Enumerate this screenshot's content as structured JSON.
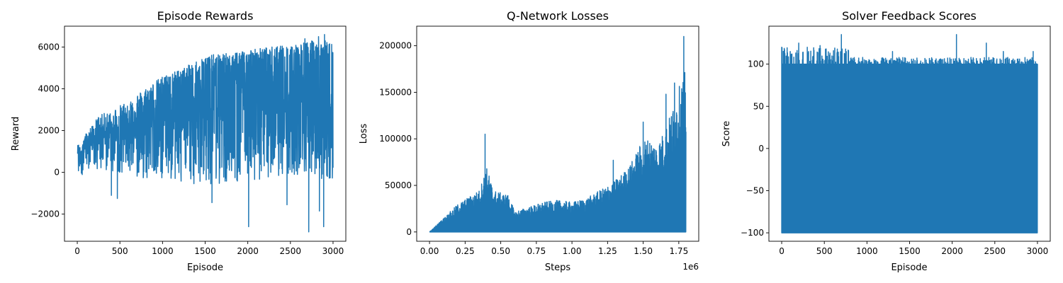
{
  "colors": {
    "series": "#1f77b4",
    "axes": "#000000",
    "background": "#ffffff"
  },
  "chart_data": [
    {
      "type": "line",
      "title": "Episode Rewards",
      "xlabel": "Episode",
      "ylabel": "Reward",
      "xlim": [
        -150,
        3150
      ],
      "ylim": [
        -3300,
        7000
      ],
      "xticks": [
        0,
        500,
        1000,
        1500,
        2000,
        2500,
        3000
      ],
      "xtick_labels": [
        "0",
        "500",
        "1000",
        "1500",
        "2000",
        "2500",
        "3000"
      ],
      "yticks": [
        -2000,
        0,
        2000,
        4000,
        6000
      ],
      "ytick_labels": [
        "−2000",
        "0",
        "2000",
        "4000",
        "6000"
      ],
      "series": [
        {
          "name": "Reward",
          "x_start": 0,
          "x_end": 3000,
          "envelope": {
            "x": [
              0,
              250,
              500,
              750,
              1000,
              1250,
              1500,
              1750,
              2000,
              2250,
              2500,
              2750,
              3000
            ],
            "upper": [
              1300,
              2700,
              3200,
              3900,
              4600,
              5000,
              5600,
              5700,
              5900,
              6000,
              6100,
              6300,
              6300
            ],
            "lower": [
              -200,
              100,
              0,
              -300,
              -400,
              -500,
              -600,
              -500,
              -400,
              -300,
              -300,
              -300,
              -300
            ],
            "band_high": [
              900,
              2000,
              2400,
              3000,
              3900,
              4400,
              4800,
              5000,
              5200,
              5300,
              5400,
              5500,
              5600
            ],
            "band_low": [
              900,
              1200,
              1300,
              1300,
              1400,
              1500,
              1500,
              1500,
              1600,
              1600,
              1600,
              1700,
              1700
            ]
          },
          "spikes": [
            {
              "x": 2010,
              "y": -2600
            },
            {
              "x": 2715,
              "y": -2850
            },
            {
              "x": 2890,
              "y": -2600
            },
            {
              "x": 2840,
              "y": -1850
            },
            {
              "x": 2460,
              "y": -1550
            },
            {
              "x": 1580,
              "y": -1450
            },
            {
              "x": 470,
              "y": -1250
            },
            {
              "x": 400,
              "y": -1100
            },
            {
              "x": 2000,
              "y": 1200
            },
            {
              "x": 1760,
              "y": 2400
            },
            {
              "x": 2830,
              "y": 6500
            },
            {
              "x": 2900,
              "y": 6600
            },
            {
              "x": 2670,
              "y": 6400
            }
          ]
        }
      ]
    },
    {
      "type": "line",
      "title": "Q-Network Losses",
      "xlabel": "Steps",
      "ylabel": "Loss",
      "x_offset_text": "1e6",
      "xlim": [
        -0.09,
        1.89
      ],
      "ylim": [
        -10000,
        221000
      ],
      "xticks": [
        0,
        0.25,
        0.5,
        0.75,
        1.0,
        1.25,
        1.5,
        1.75
      ],
      "xtick_labels": [
        "0.00",
        "0.25",
        "0.50",
        "0.75",
        "1.00",
        "1.25",
        "1.50",
        "1.75"
      ],
      "yticks": [
        0,
        50000,
        100000,
        150000,
        200000
      ],
      "ytick_labels": [
        "0",
        "50000",
        "100000",
        "150000",
        "200000"
      ],
      "series": [
        {
          "name": "Loss",
          "x_start": 0,
          "x_end": 1.8,
          "envelope": {
            "x": [
              0,
              0.1,
              0.2,
              0.3,
              0.35,
              0.4,
              0.45,
              0.5,
              0.55,
              0.6,
              0.7,
              0.8,
              0.9,
              1.0,
              1.1,
              1.2,
              1.3,
              1.4,
              1.45,
              1.5,
              1.55,
              1.6,
              1.65,
              1.7,
              1.75,
              1.8
            ],
            "upper": [
              0,
              15000,
              30000,
              40000,
              45000,
              70000,
              45000,
              42000,
              40000,
              22000,
              27000,
              32000,
              34000,
              32000,
              36000,
              45000,
              55000,
              70000,
              85000,
              100000,
              100000,
              95000,
              110000,
              130000,
              155000,
              175000
            ]
          },
          "spikes": [
            {
              "x": 0.39,
              "y": 105000
            },
            {
              "x": 1.785,
              "y": 210000
            },
            {
              "x": 1.66,
              "y": 148000
            },
            {
              "x": 1.5,
              "y": 118000
            },
            {
              "x": 1.29,
              "y": 77000
            },
            {
              "x": 1.72,
              "y": 160000
            }
          ]
        }
      ]
    },
    {
      "type": "line",
      "title": "Solver Feedback Scores",
      "xlabel": "Episode",
      "ylabel": "Score",
      "xlim": [
        -150,
        3150
      ],
      "ylim": [
        -110,
        145
      ],
      "xticks": [
        0,
        500,
        1000,
        1500,
        2000,
        2500,
        3000
      ],
      "xtick_labels": [
        "0",
        "500",
        "1000",
        "1500",
        "2000",
        "2500",
        "3000"
      ],
      "yticks": [
        -100,
        -50,
        0,
        50,
        100
      ],
      "ytick_labels": [
        "−100",
        "−50",
        "0",
        "50",
        "100"
      ],
      "series": [
        {
          "name": "Score",
          "x_start": 0,
          "x_end": 3000,
          "band_high": 100,
          "band_low": -100,
          "upper_max": [
            {
              "x": 0,
              "y": 120
            },
            {
              "x": 100,
              "y": 115
            },
            {
              "x": 200,
              "y": 125
            },
            {
              "x": 300,
              "y": 120
            },
            {
              "x": 450,
              "y": 122
            },
            {
              "x": 700,
              "y": 135
            },
            {
              "x": 950,
              "y": 108
            },
            {
              "x": 1300,
              "y": 115
            },
            {
              "x": 2050,
              "y": 135
            },
            {
              "x": 2400,
              "y": 125
            },
            {
              "x": 2600,
              "y": 115
            },
            {
              "x": 2950,
              "y": 115
            }
          ]
        }
      ]
    }
  ]
}
